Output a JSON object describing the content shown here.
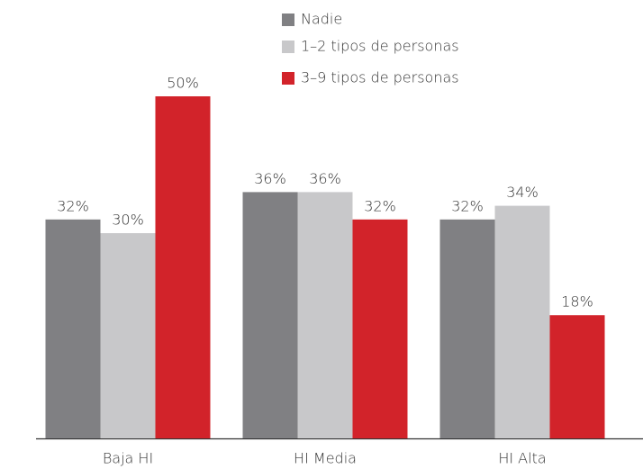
{
  "chart_data": {
    "type": "bar",
    "categories": [
      "Baja HI",
      "HI Media",
      "HI Alta"
    ],
    "series": [
      {
        "name": "Nadie",
        "color": "#808083",
        "values": [
          32,
          36,
          32
        ],
        "value_labels": [
          "32%",
          "36%",
          "32%"
        ]
      },
      {
        "name": "1–2 tipos de personas",
        "color": "#c8c8ca",
        "values": [
          30,
          36,
          34
        ],
        "value_labels": [
          "30%",
          "36%",
          "34%"
        ]
      },
      {
        "name": "3–9 tipos de personas",
        "color": "#d2232a",
        "values": [
          50,
          32,
          18
        ],
        "value_labels": [
          "50%",
          "32%",
          "18%"
        ]
      }
    ]
  }
}
